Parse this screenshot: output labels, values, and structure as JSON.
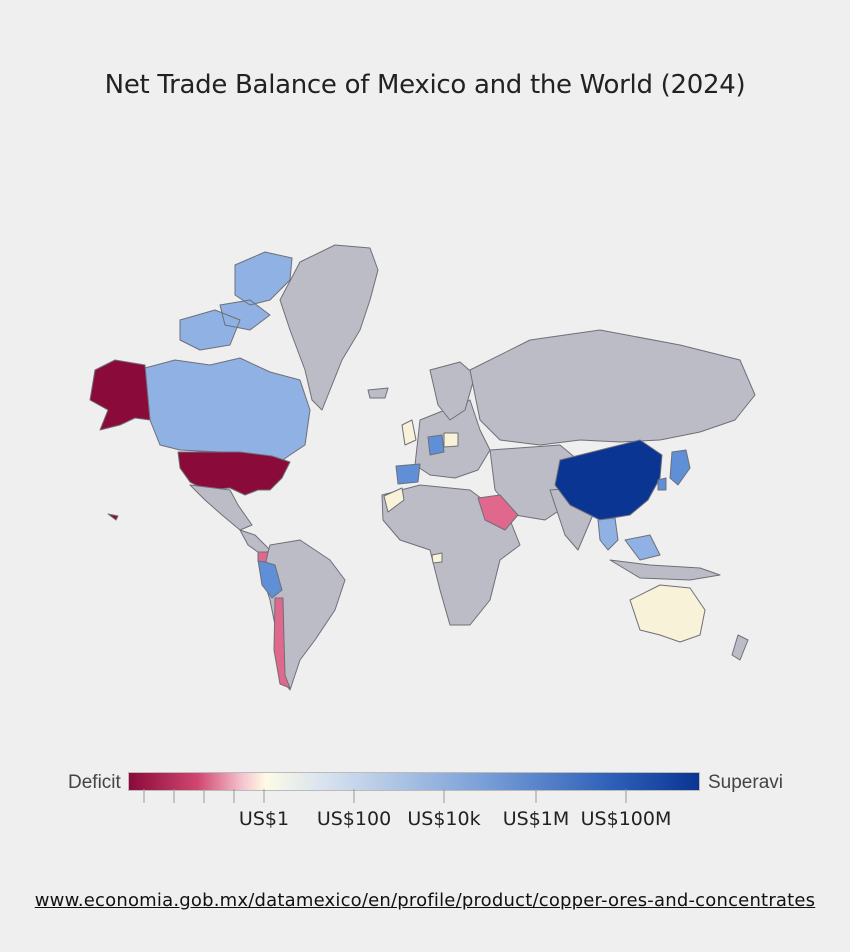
{
  "title": "Net Trade Balance of Mexico and the World (2024)",
  "legend": {
    "left_label": "Deficit",
    "right_label": "Superavi",
    "ticks": [
      "US$1",
      "US$100",
      "US$10k",
      "US$1M",
      "US$100M"
    ]
  },
  "source_link": "www.economia.gob.mx/datamexico/en/profile/product/copper-ores-and-concentrates",
  "colors": {
    "strong_deficit": "#8a0a3a",
    "moderate_deficit": "#e0688c",
    "neutral": "#f8f2d8",
    "light_surplus": "#8fb1e3",
    "medium_surplus": "#5f8fd6",
    "strong_surplus": "#0a3592",
    "no_data": "#bcbcc6"
  }
}
